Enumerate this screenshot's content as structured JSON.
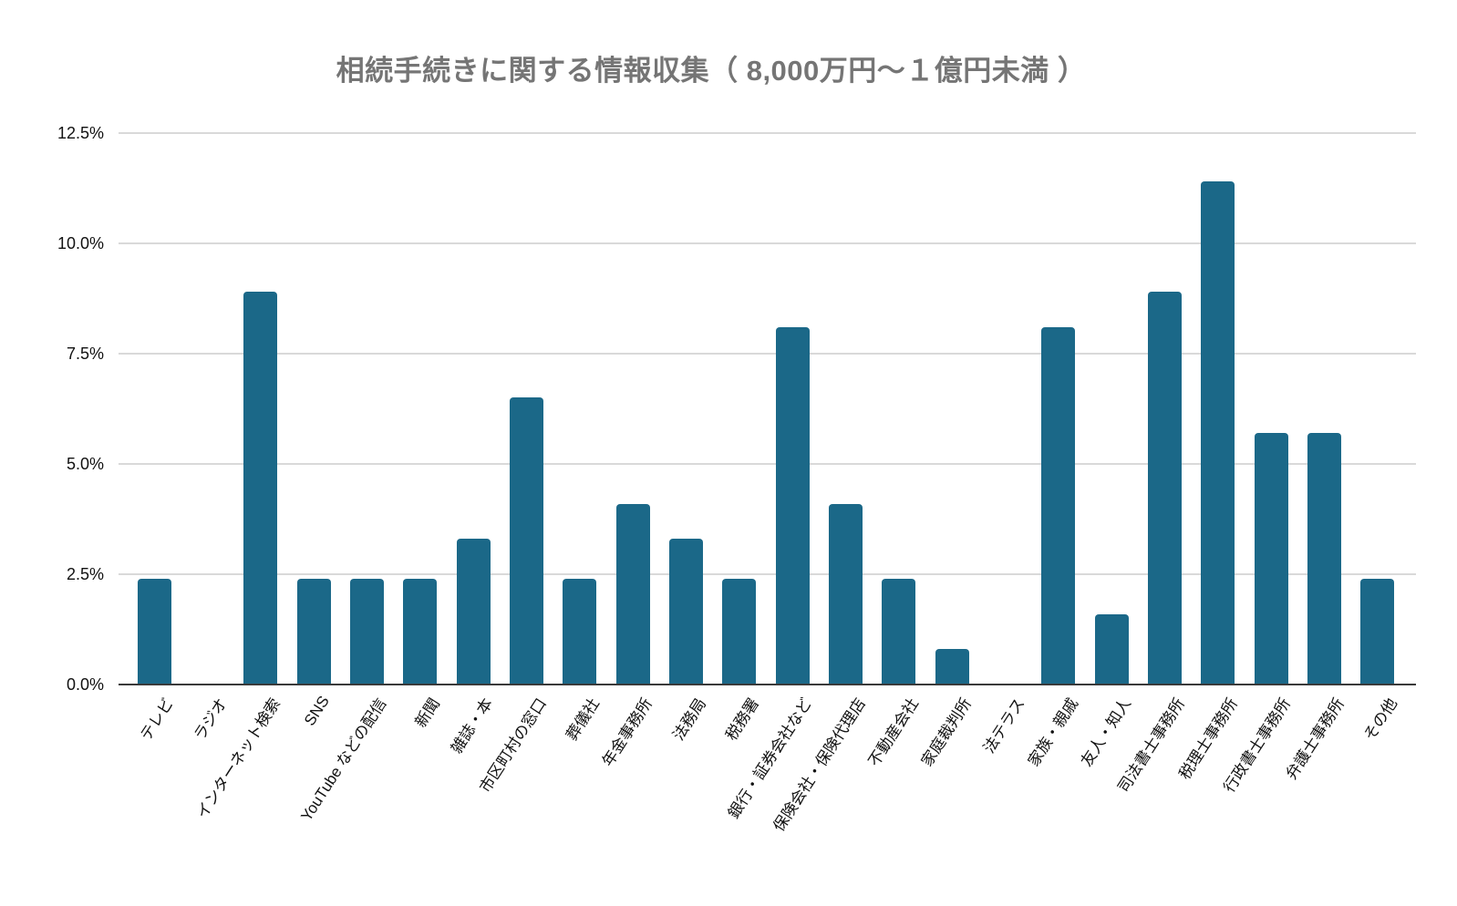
{
  "title": "相続手続きに関する情報収集（ 8,000万円～１億円未満 ）",
  "colors": {
    "bar": "#1b6888",
    "title_text": "#757575",
    "gridline": "#d9d9d9",
    "baseline": "#3a3a3a",
    "tick_text": "#111111",
    "background": "#ffffff"
  },
  "y_axis": {
    "ticks": [
      "12.5%",
      "10.0%",
      "7.5%",
      "5.0%",
      "2.5%",
      "0.0%"
    ],
    "min": 0,
    "max": 12.5
  },
  "chart_data": {
    "type": "bar",
    "title": "相続手続きに関する情報収集（ 8,000万円～１億円未満 ）",
    "categories": [
      "テレビ",
      "ラジオ",
      "インターネット検索",
      "SNS",
      "YouTube などの配信",
      "新聞",
      "雑誌・本",
      "市区町村の窓口",
      "葬儀社",
      "年金事務所",
      "法務局",
      "税務署",
      "銀行・証券会社など",
      "保険会社・保険代理店",
      "不動産会社",
      "家庭裁判所",
      "法テラス",
      "家族・親戚",
      "友人・知人",
      "司法書士事務所",
      "税理士事務所",
      "行政書士事務所",
      "弁護士事務所",
      "その他"
    ],
    "values": [
      2.4,
      0,
      8.9,
      2.4,
      2.4,
      2.4,
      3.3,
      6.5,
      2.4,
      4.1,
      3.3,
      2.4,
      8.1,
      4.1,
      2.4,
      0.8,
      0,
      8.1,
      1.6,
      8.9,
      11.4,
      5.7,
      5.7,
      2.4
    ],
    "xlabel": "",
    "ylabel": "",
    "ylim": [
      0,
      12.5
    ],
    "y_tick_format": "percent",
    "grid": true,
    "legend_position": "none",
    "bar_color": "#1b6888",
    "x_label_rotation_deg": 57
  }
}
